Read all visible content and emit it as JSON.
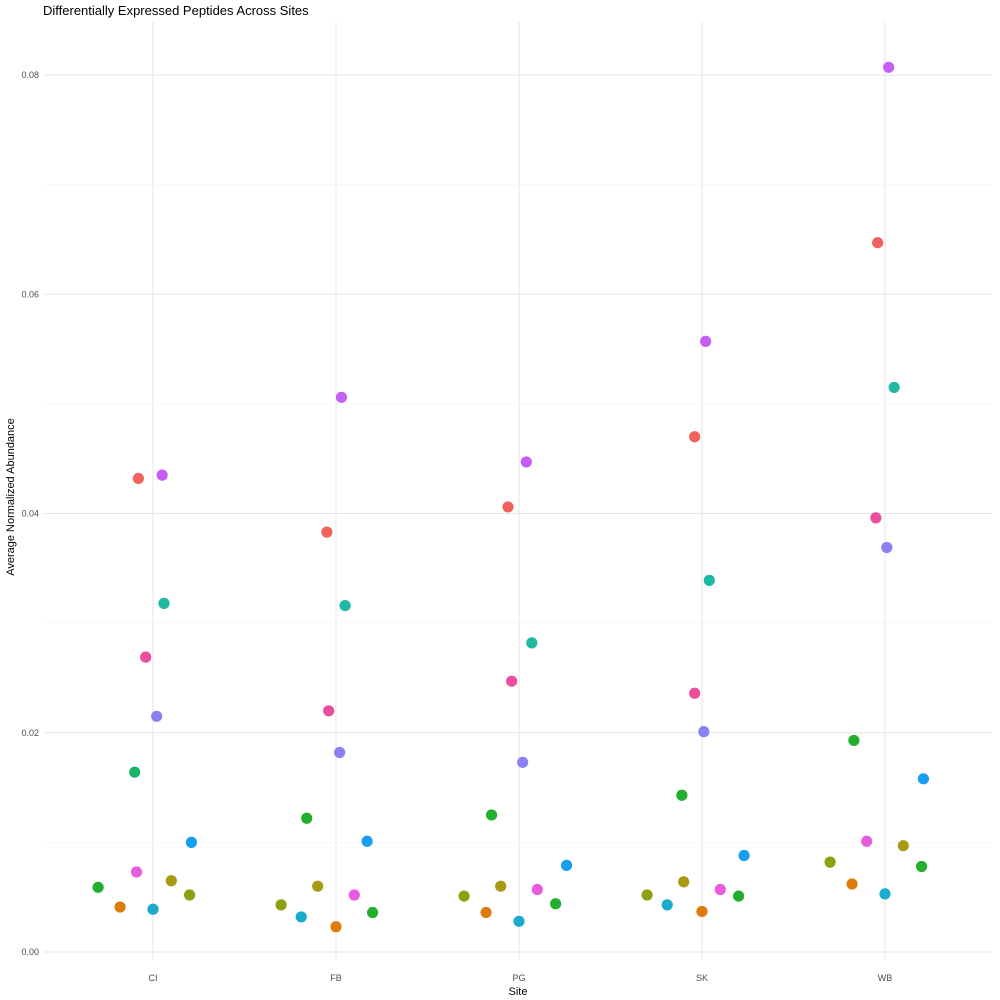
{
  "chart_data": {
    "type": "scatter",
    "title": "Differentially Expressed Peptides Across Sites",
    "xlabel": "Site",
    "ylabel": "Average Normalized Abundance",
    "categories": [
      "CI",
      "FB",
      "PG",
      "SK",
      "WB"
    ],
    "ylim": [
      0,
      0.082
    ],
    "yticks": [
      0.0,
      0.02,
      0.04,
      0.06,
      0.08
    ],
    "ytick_labels": [
      "0.00",
      "0.02",
      "0.04",
      "0.06",
      "0.08"
    ],
    "grid": true,
    "legend": "none",
    "points": [
      {
        "site": "CI",
        "jitter": -0.3,
        "y": 0.0059,
        "color": "#24AE2E"
      },
      {
        "site": "CI",
        "jitter": -0.18,
        "y": 0.0041,
        "color": "#DE7B0E"
      },
      {
        "site": "CI",
        "jitter": -0.1,
        "y": 0.0164,
        "color": "#18B36A"
      },
      {
        "site": "CI",
        "jitter": -0.09,
        "y": 0.0073,
        "color": "#E85BDE"
      },
      {
        "site": "CI",
        "jitter": -0.08,
        "y": 0.0432,
        "color": "#F0625E"
      },
      {
        "site": "CI",
        "jitter": -0.04,
        "y": 0.0269,
        "color": "#EC4E9E"
      },
      {
        "site": "CI",
        "jitter": 0.0,
        "y": 0.0039,
        "color": "#1AABCE"
      },
      {
        "site": "CI",
        "jitter": 0.02,
        "y": 0.0215,
        "color": "#8A80F2"
      },
      {
        "site": "CI",
        "jitter": 0.05,
        "y": 0.0435,
        "color": "#C55EF5"
      },
      {
        "site": "CI",
        "jitter": 0.06,
        "y": 0.0318,
        "color": "#1FB8A2"
      },
      {
        "site": "CI",
        "jitter": 0.1,
        "y": 0.0065,
        "color": "#A89A12"
      },
      {
        "site": "CI",
        "jitter": 0.2,
        "y": 0.0052,
        "color": "#8EA010"
      },
      {
        "site": "CI",
        "jitter": 0.21,
        "y": 0.01,
        "color": "#199DF0"
      },
      {
        "site": "FB",
        "jitter": -0.3,
        "y": 0.0043,
        "color": "#8EA010"
      },
      {
        "site": "FB",
        "jitter": -0.19,
        "y": 0.0032,
        "color": "#1AABCE"
      },
      {
        "site": "FB",
        "jitter": -0.16,
        "y": 0.0122,
        "color": "#24AE2E"
      },
      {
        "site": "FB",
        "jitter": -0.1,
        "y": 0.006,
        "color": "#A89A12"
      },
      {
        "site": "FB",
        "jitter": -0.05,
        "y": 0.0383,
        "color": "#F0625E"
      },
      {
        "site": "FB",
        "jitter": -0.04,
        "y": 0.022,
        "color": "#EC4E9E"
      },
      {
        "site": "FB",
        "jitter": 0.0,
        "y": 0.0023,
        "color": "#DE7B0E"
      },
      {
        "site": "FB",
        "jitter": 0.02,
        "y": 0.0182,
        "color": "#8A80F2"
      },
      {
        "site": "FB",
        "jitter": 0.03,
        "y": 0.0506,
        "color": "#C55EF5"
      },
      {
        "site": "FB",
        "jitter": 0.05,
        "y": 0.0316,
        "color": "#1FB8A2"
      },
      {
        "site": "FB",
        "jitter": 0.1,
        "y": 0.0052,
        "color": "#E85BDE"
      },
      {
        "site": "FB",
        "jitter": 0.17,
        "y": 0.0101,
        "color": "#199DF0"
      },
      {
        "site": "FB",
        "jitter": 0.2,
        "y": 0.0036,
        "color": "#24AE2E"
      },
      {
        "site": "PG",
        "jitter": -0.3,
        "y": 0.0051,
        "color": "#8EA010"
      },
      {
        "site": "PG",
        "jitter": -0.18,
        "y": 0.0036,
        "color": "#DE7B0E"
      },
      {
        "site": "PG",
        "jitter": -0.15,
        "y": 0.0125,
        "color": "#24AE2E"
      },
      {
        "site": "PG",
        "jitter": -0.1,
        "y": 0.006,
        "color": "#A89A12"
      },
      {
        "site": "PG",
        "jitter": -0.06,
        "y": 0.0406,
        "color": "#F0625E"
      },
      {
        "site": "PG",
        "jitter": -0.04,
        "y": 0.0247,
        "color": "#EC4E9E"
      },
      {
        "site": "PG",
        "jitter": 0.0,
        "y": 0.0028,
        "color": "#1AABCE"
      },
      {
        "site": "PG",
        "jitter": 0.02,
        "y": 0.0173,
        "color": "#8A80F2"
      },
      {
        "site": "PG",
        "jitter": 0.04,
        "y": 0.0447,
        "color": "#C55EF5"
      },
      {
        "site": "PG",
        "jitter": 0.07,
        "y": 0.0282,
        "color": "#1FB8A2"
      },
      {
        "site": "PG",
        "jitter": 0.1,
        "y": 0.0057,
        "color": "#E85BDE"
      },
      {
        "site": "PG",
        "jitter": 0.2,
        "y": 0.0044,
        "color": "#24AE2E"
      },
      {
        "site": "PG",
        "jitter": 0.26,
        "y": 0.0079,
        "color": "#199DF0"
      },
      {
        "site": "SK",
        "jitter": -0.3,
        "y": 0.0052,
        "color": "#8EA010"
      },
      {
        "site": "SK",
        "jitter": -0.19,
        "y": 0.0043,
        "color": "#1AABCE"
      },
      {
        "site": "SK",
        "jitter": -0.11,
        "y": 0.0143,
        "color": "#24AE2E"
      },
      {
        "site": "SK",
        "jitter": -0.1,
        "y": 0.0064,
        "color": "#A89A12"
      },
      {
        "site": "SK",
        "jitter": -0.04,
        "y": 0.047,
        "color": "#F0625E"
      },
      {
        "site": "SK",
        "jitter": -0.04,
        "y": 0.0236,
        "color": "#EC4E9E"
      },
      {
        "site": "SK",
        "jitter": 0.0,
        "y": 0.0037,
        "color": "#DE7B0E"
      },
      {
        "site": "SK",
        "jitter": 0.01,
        "y": 0.0201,
        "color": "#8A80F2"
      },
      {
        "site": "SK",
        "jitter": 0.02,
        "y": 0.0557,
        "color": "#C55EF5"
      },
      {
        "site": "SK",
        "jitter": 0.04,
        "y": 0.0339,
        "color": "#1FB8A2"
      },
      {
        "site": "SK",
        "jitter": 0.1,
        "y": 0.0057,
        "color": "#E85BDE"
      },
      {
        "site": "SK",
        "jitter": 0.2,
        "y": 0.0051,
        "color": "#24AE2E"
      },
      {
        "site": "SK",
        "jitter": 0.23,
        "y": 0.0088,
        "color": "#199DF0"
      },
      {
        "site": "WB",
        "jitter": -0.3,
        "y": 0.0082,
        "color": "#8EA010"
      },
      {
        "site": "WB",
        "jitter": -0.18,
        "y": 0.0062,
        "color": "#DE7B0E"
      },
      {
        "site": "WB",
        "jitter": -0.17,
        "y": 0.0193,
        "color": "#24AE2E"
      },
      {
        "site": "WB",
        "jitter": -0.1,
        "y": 0.0101,
        "color": "#E85BDE"
      },
      {
        "site": "WB",
        "jitter": -0.05,
        "y": 0.0396,
        "color": "#EC4E9E"
      },
      {
        "site": "WB",
        "jitter": -0.04,
        "y": 0.0647,
        "color": "#F0625E"
      },
      {
        "site": "WB",
        "jitter": 0.0,
        "y": 0.0053,
        "color": "#1AABCE"
      },
      {
        "site": "WB",
        "jitter": 0.01,
        "y": 0.0369,
        "color": "#8A80F2"
      },
      {
        "site": "WB",
        "jitter": 0.02,
        "y": 0.0807,
        "color": "#C55EF5"
      },
      {
        "site": "WB",
        "jitter": 0.05,
        "y": 0.0515,
        "color": "#1FB8A2"
      },
      {
        "site": "WB",
        "jitter": 0.1,
        "y": 0.0097,
        "color": "#A89A12"
      },
      {
        "site": "WB",
        "jitter": 0.2,
        "y": 0.0078,
        "color": "#24AE2E"
      },
      {
        "site": "WB",
        "jitter": 0.21,
        "y": 0.0158,
        "color": "#199DF0"
      }
    ]
  }
}
